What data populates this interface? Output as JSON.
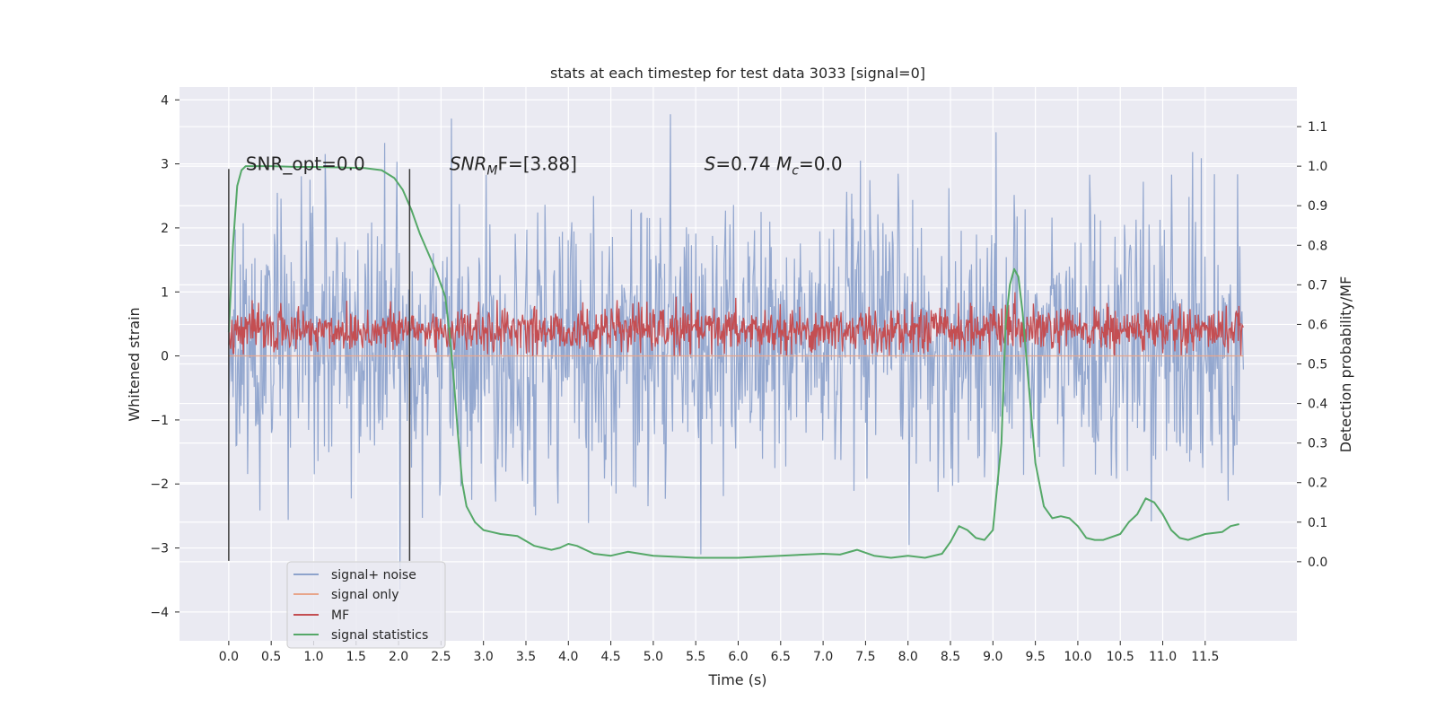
{
  "chart_data": {
    "type": "line",
    "title": "stats at each timestep for test data 3033 [signal=0]",
    "xlabel": "Time (s)",
    "ylabel": "Whitened strain",
    "ylabel_right": "Detection probability/MF",
    "xlim": [
      -0.58,
      12.58
    ],
    "ylim": [
      -4.45,
      4.2
    ],
    "ylim_right": [
      -0.2,
      1.2
    ],
    "x_ticks": [
      "0.0",
      "0.5",
      "1.0",
      "1.5",
      "2.0",
      "2.5",
      "3.0",
      "3.5",
      "4.0",
      "4.5",
      "5.0",
      "5.5",
      "6.0",
      "6.5",
      "7.0",
      "7.5",
      "8.0",
      "8.5",
      "9.0",
      "9.5",
      "10.0",
      "10.5",
      "11.0",
      "11.5"
    ],
    "y_ticks_left": [
      "−4",
      "−3",
      "−2",
      "−1",
      "0",
      "1",
      "2",
      "3",
      "4"
    ],
    "y_ticks_right": [
      "0.0",
      "0.1",
      "0.2",
      "0.3",
      "0.4",
      "0.5",
      "0.6",
      "0.7",
      "0.8",
      "0.9",
      "1.0",
      "1.1"
    ],
    "grid": true,
    "legend_position": "lower-left",
    "annotations": [
      {
        "text": "SNR_opt=0.0",
        "x": 0.2,
        "y": 2.9
      },
      {
        "text": "SNR_MF=[3.88]",
        "x": 2.6,
        "y": 2.9,
        "main": "SNR",
        "sub": "M",
        "rest": "F=[3.88]"
      },
      {
        "text": "S=0.74   M_c=0.0",
        "x": 5.6,
        "y": 2.9
      }
    ],
    "vertical_markers": [
      {
        "x": 0.0,
        "ymin": -3.2,
        "ymax": 2.92
      },
      {
        "x": 2.13,
        "ymin": -3.2,
        "ymax": 2.92
      }
    ],
    "series": [
      {
        "name": "signal+ noise",
        "color": "#8ea3cc",
        "axis": "left",
        "kind": "noise",
        "x_range": [
          0.0,
          11.95
        ],
        "envelope": [
          -3.2,
          3.8
        ],
        "y_min_observed": -4.07,
        "y_max_observed": 3.78
      },
      {
        "name": "signal only",
        "color": "#e8a58a",
        "axis": "left",
        "x": [
          0.0,
          11.95
        ],
        "y": [
          0.0,
          0.0
        ]
      },
      {
        "name": "MF",
        "color": "#c44e52",
        "axis": "left",
        "kind": "band",
        "x_range": [
          0.0,
          11.95
        ],
        "band": [
          0.0,
          1.0
        ],
        "center": 0.4
      },
      {
        "name": "signal statistics",
        "color": "#55a868",
        "axis": "right",
        "x": [
          0.0,
          0.05,
          0.1,
          0.15,
          0.2,
          0.3,
          0.5,
          0.8,
          1.0,
          1.3,
          1.6,
          1.8,
          1.95,
          2.05,
          2.15,
          2.25,
          2.35,
          2.45,
          2.55,
          2.6,
          2.65,
          2.7,
          2.75,
          2.8,
          2.9,
          3.0,
          3.1,
          3.2,
          3.4,
          3.6,
          3.8,
          3.9,
          4.0,
          4.1,
          4.3,
          4.5,
          4.7,
          5.0,
          5.5,
          6.0,
          6.5,
          7.0,
          7.2,
          7.4,
          7.6,
          7.8,
          8.0,
          8.2,
          8.4,
          8.5,
          8.6,
          8.7,
          8.8,
          8.9,
          9.0,
          9.1,
          9.15,
          9.2,
          9.25,
          9.3,
          9.35,
          9.4,
          9.5,
          9.6,
          9.7,
          9.8,
          9.9,
          10.0,
          10.1,
          10.2,
          10.3,
          10.5,
          10.6,
          10.7,
          10.8,
          10.9,
          11.0,
          11.1,
          11.2,
          11.3,
          11.5,
          11.7,
          11.8,
          11.9
        ],
        "y": [
          0.58,
          0.8,
          0.95,
          0.99,
          1.0,
          1.0,
          1.0,
          0.998,
          0.998,
          0.997,
          0.995,
          0.99,
          0.97,
          0.94,
          0.89,
          0.83,
          0.78,
          0.73,
          0.67,
          0.58,
          0.46,
          0.32,
          0.2,
          0.14,
          0.1,
          0.08,
          0.075,
          0.07,
          0.065,
          0.04,
          0.03,
          0.035,
          0.045,
          0.04,
          0.02,
          0.015,
          0.025,
          0.015,
          0.01,
          0.01,
          0.015,
          0.02,
          0.018,
          0.03,
          0.015,
          0.01,
          0.015,
          0.01,
          0.02,
          0.05,
          0.09,
          0.08,
          0.06,
          0.055,
          0.08,
          0.3,
          0.6,
          0.7,
          0.74,
          0.72,
          0.63,
          0.5,
          0.25,
          0.14,
          0.11,
          0.115,
          0.11,
          0.09,
          0.06,
          0.055,
          0.055,
          0.07,
          0.1,
          0.12,
          0.16,
          0.15,
          0.12,
          0.08,
          0.06,
          0.055,
          0.07,
          0.075,
          0.09,
          0.095
        ]
      }
    ]
  }
}
